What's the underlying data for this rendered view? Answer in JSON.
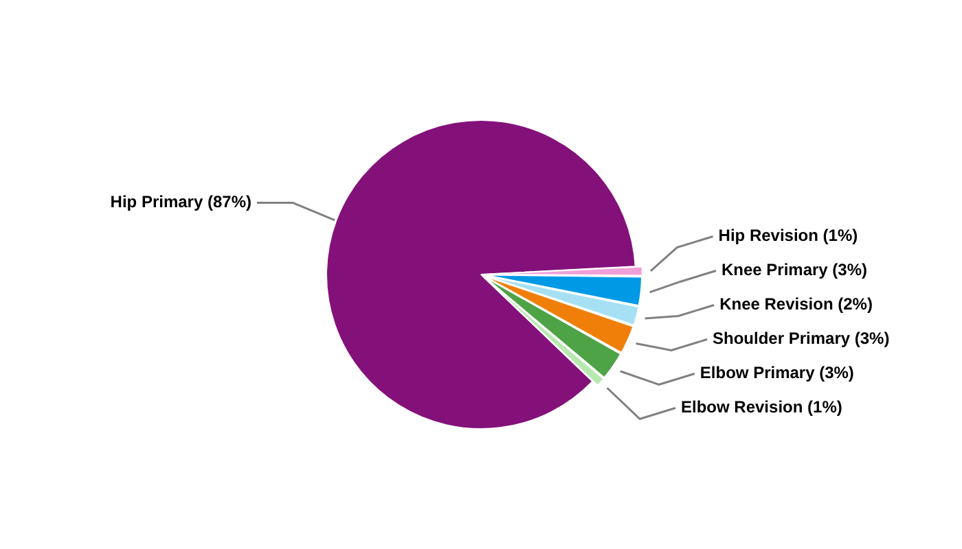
{
  "chart_data": {
    "type": "pie",
    "categories": [
      "Hip Primary",
      "Hip Revision",
      "Knee Primary",
      "Knee Revision",
      "Shoulder Primary",
      "Elbow Primary",
      "Elbow Revision"
    ],
    "values": [
      87,
      1,
      3,
      2,
      3,
      3,
      1
    ],
    "value_labels": [
      "(87%)",
      "(1%)",
      "(3%)",
      "(2%)",
      "(3%)",
      "(3%)",
      "(1%)"
    ],
    "colors": [
      "#84117a",
      "#f0a0d8",
      "#0099e6",
      "#a6e0f5",
      "#f07f09",
      "#4ea346",
      "#b8e8b0"
    ],
    "legend": false
  }
}
